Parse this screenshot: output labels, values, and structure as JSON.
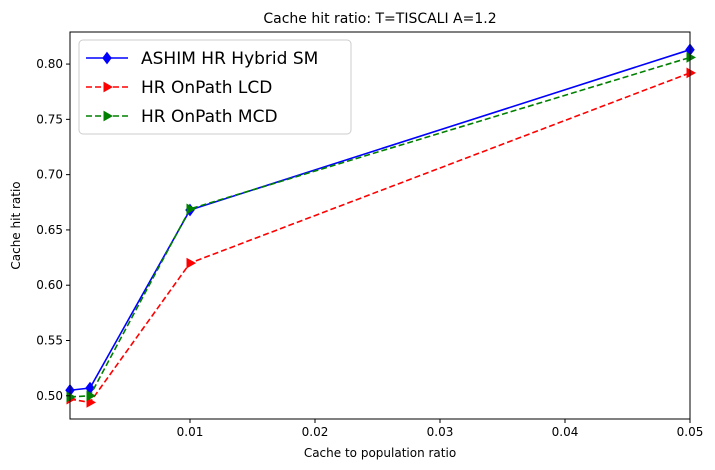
{
  "chart_data": {
    "type": "line",
    "title": "Cache hit ratio: T=TISCALI A=1.2",
    "xlabel": "Cache to population ratio",
    "ylabel": "Cache hit ratio",
    "xlim": [
      0.0004,
      0.05
    ],
    "ylim": [
      0.479,
      0.829
    ],
    "xticks": [
      0.01,
      0.02,
      0.03,
      0.04,
      0.05
    ],
    "xtick_labels": [
      "0.01",
      "0.02",
      "0.03",
      "0.04",
      "0.05"
    ],
    "yticks": [
      0.5,
      0.55,
      0.6,
      0.65,
      0.7,
      0.75,
      0.8
    ],
    "ytick_labels": [
      "0.50",
      "0.55",
      "0.60",
      "0.65",
      "0.70",
      "0.75",
      "0.80"
    ],
    "grid": false,
    "legend_position": "top-left",
    "x": [
      0.0004,
      0.002,
      0.01,
      0.05
    ],
    "series": [
      {
        "name": "ASHIM HR Hybrid SM",
        "values": [
          0.505,
          0.507,
          0.668,
          0.813
        ],
        "color": "#0000ff",
        "linestyle": "solid",
        "marker": "diamond"
      },
      {
        "name": "HR OnPath LCD",
        "values": [
          0.497,
          0.494,
          0.62,
          0.792
        ],
        "color": "#ff0000",
        "linestyle": "dashed",
        "marker": "triangle-right"
      },
      {
        "name": "HR OnPath MCD",
        "values": [
          0.499,
          0.5,
          0.669,
          0.806
        ],
        "color": "#008000",
        "linestyle": "dashed",
        "marker": "triangle-right"
      }
    ]
  }
}
